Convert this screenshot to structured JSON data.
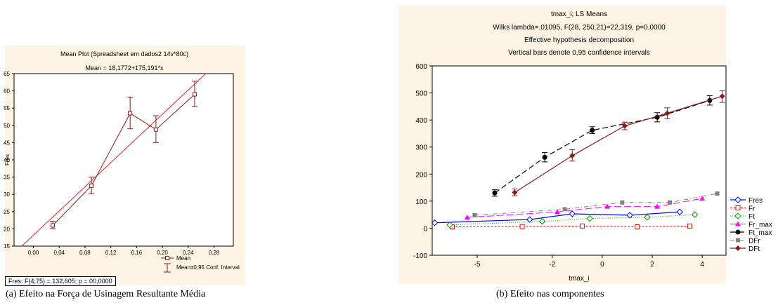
{
  "colors": {
    "background": "#fdf4e3",
    "left_red": "#e0202a",
    "left_dark": "#8b1a1a",
    "fres": "#0000ff",
    "fr": "#ff0000",
    "ft": "#00a000",
    "fr_max": "#ff00ff",
    "ft_max": "#000000",
    "dfr": "#808080",
    "dft": "#8b1a1a"
  },
  "captions": {
    "a": "(a)  Efeito na Força de Usinagem Resultante Média",
    "b": "(b) Efeito nas componentes"
  },
  "chart_data": [
    {
      "type": "line",
      "title": "Mean Plot (Spreadsheet em dados2 14v*80c)",
      "subtitle": "Mean = 18,1772+175,191*x",
      "xlabel": "",
      "ylabel": "Fres",
      "x_ticks": [
        "0,00",
        "0,04",
        "0,08",
        "0,12",
        "0,16",
        "0,20",
        "0,24",
        "0,28"
      ],
      "y_ticks": [
        "15",
        "20",
        "25",
        "30",
        "35",
        "40",
        "45",
        "50",
        "55",
        "60",
        "65"
      ],
      "xlim": [
        -0.03,
        0.31
      ],
      "ylim": [
        15,
        65
      ],
      "regression": {
        "intercept": 18.1772,
        "slope": 175.191
      },
      "series": [
        {
          "name": "Mean",
          "x": [
            0.03,
            0.09,
            0.15,
            0.19,
            0.25
          ],
          "y": [
            21,
            32.5,
            53.5,
            48.8,
            59
          ],
          "ci_low": [
            20,
            30.2,
            49,
            45,
            55.5
          ],
          "ci_high": [
            22.2,
            35,
            58.2,
            52.8,
            62.8
          ]
        }
      ],
      "legend": [
        "Mean",
        "Mean±0,95 Conf. Interval"
      ],
      "legend_position": "bottom-right",
      "stats": "Fres:  F(4;75) = 132,605; p = 00,0000"
    },
    {
      "type": "line",
      "title": "tmax_i; LS Means",
      "subtitle_lines": [
        "Wilks lambda=,01095, F(28, 250,21)=22,319, p=0,0000",
        "Effective hypothesis decomposition",
        "Vertical bars denote 0,95 confidence intervals"
      ],
      "xlabel": "tmax_i",
      "x_ticks": [
        "-5",
        "-2",
        "0",
        "2",
        "4"
      ],
      "x_tick_values": [
        -5,
        -2,
        0,
        2,
        4
      ],
      "y_ticks": [
        "-100",
        "0",
        "100",
        "200",
        "300",
        "400",
        "500",
        "600"
      ],
      "xlim": [
        -6.8,
        4.95
      ],
      "ylim": [
        -100,
        600
      ],
      "legend_position": "right",
      "series": [
        {
          "name": "Fres",
          "x": [
            -6.7,
            -2.9,
            -1.2,
            1.1,
            3.1
          ],
          "y": [
            20,
            32,
            53,
            48,
            60
          ]
        },
        {
          "name": "Fr",
          "x": [
            -6.0,
            -3.2,
            -0.8,
            1.4,
            3.5
          ],
          "y": [
            5,
            6,
            8,
            5,
            8
          ]
        },
        {
          "name": "Ft",
          "x": [
            -6.1,
            -2.4,
            -0.5,
            1.8,
            3.7
          ],
          "y": [
            12,
            25,
            36,
            40,
            50
          ]
        },
        {
          "name": "Fr_max",
          "x": [
            -5.4,
            -1.8,
            0.2,
            2.2,
            4.0
          ],
          "y": [
            40,
            60,
            80,
            80,
            110
          ]
        },
        {
          "name": "Ft_max",
          "x": [
            -4.3,
            -2.3,
            -0.4,
            2.2,
            4.3
          ],
          "y": [
            130,
            262,
            362,
            410,
            472
          ]
        },
        {
          "name": "DFr",
          "x": [
            -5.1,
            -1.5,
            0.8,
            2.7,
            4.6
          ],
          "y": [
            48,
            70,
            95,
            95,
            128
          ]
        },
        {
          "name": "DFt",
          "x": [
            -3.5,
            -1.2,
            0.9,
            2.6,
            4.8
          ],
          "y": [
            132,
            268,
            378,
            425,
            488
          ]
        }
      ],
      "error_bars": {
        "Ft_max": [
          [
            118,
            142
          ],
          [
            245,
            280
          ],
          [
            350,
            375
          ],
          [
            393,
            427
          ],
          [
            455,
            490
          ]
        ],
        "DFt": [
          [
            120,
            145
          ],
          [
            248,
            290
          ],
          [
            364,
            392
          ],
          [
            405,
            445
          ],
          [
            465,
            508
          ]
        ]
      }
    }
  ]
}
